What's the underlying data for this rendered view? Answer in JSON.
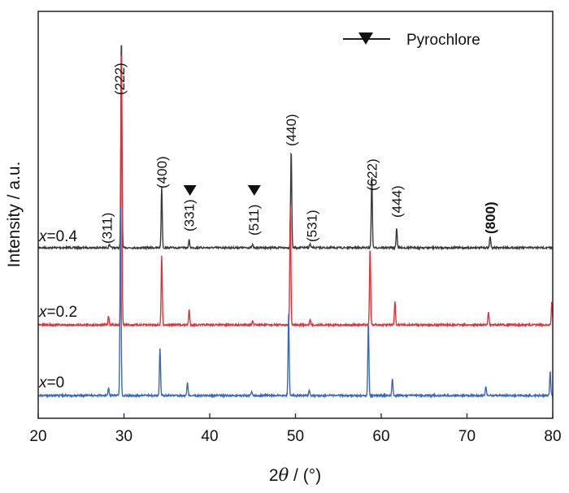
{
  "chart_data": {
    "type": "line",
    "xlabel_parts": [
      "2",
      "θ",
      " / (°)"
    ],
    "ylabel": "Intensity / a.u.",
    "xlim": [
      20,
      80
    ],
    "x_ticks": [
      20,
      30,
      40,
      50,
      60,
      70,
      80
    ],
    "grid": false,
    "legend": {
      "entries": [
        {
          "marker": "triangle-down",
          "label": "Pyrochlore"
        }
      ],
      "placement": "top-right"
    },
    "series": [
      {
        "name_prefix": "x",
        "name_suffix": "=0.4",
        "color": "#3a3a3a",
        "offset": 2.0,
        "peaks": [
          {
            "x": 28.3,
            "h": 0.05
          },
          {
            "x": 29.7,
            "h": 2.75
          },
          {
            "x": 34.4,
            "h": 0.8
          },
          {
            "x": 37.6,
            "h": 0.1
          },
          {
            "x": 45.0,
            "h": 0.04
          },
          {
            "x": 49.5,
            "h": 1.28
          },
          {
            "x": 51.7,
            "h": 0.05
          },
          {
            "x": 58.9,
            "h": 0.95
          },
          {
            "x": 61.8,
            "h": 0.26
          },
          {
            "x": 72.7,
            "h": 0.15
          }
        ]
      },
      {
        "name_prefix": "x",
        "name_suffix": "=0.2",
        "color": "#e0323b",
        "offset": 1.0,
        "peaks": [
          {
            "x": 28.2,
            "h": 0.12
          },
          {
            "x": 29.7,
            "h": 3.65
          },
          {
            "x": 34.4,
            "h": 0.9
          },
          {
            "x": 37.6,
            "h": 0.2
          },
          {
            "x": 45.0,
            "h": 0.05
          },
          {
            "x": 49.4,
            "h": 1.55
          },
          {
            "x": 51.7,
            "h": 0.07
          },
          {
            "x": 58.7,
            "h": 1.0
          },
          {
            "x": 61.6,
            "h": 0.3
          },
          {
            "x": 72.5,
            "h": 0.17
          },
          {
            "x": 79.9,
            "h": 0.3
          }
        ]
      },
      {
        "name_prefix": "x",
        "name_suffix": "=0",
        "color": "#3a69b8",
        "offset": 0.0,
        "peaks": [
          {
            "x": 28.2,
            "h": 0.1
          },
          {
            "x": 29.6,
            "h": 2.45
          },
          {
            "x": 34.2,
            "h": 0.62
          },
          {
            "x": 37.4,
            "h": 0.18
          },
          {
            "x": 44.9,
            "h": 0.05
          },
          {
            "x": 49.2,
            "h": 1.05
          },
          {
            "x": 51.6,
            "h": 0.07
          },
          {
            "x": 58.5,
            "h": 0.95
          },
          {
            "x": 61.3,
            "h": 0.22
          },
          {
            "x": 72.2,
            "h": 0.12
          },
          {
            "x": 79.7,
            "h": 0.32
          }
        ]
      }
    ],
    "peak_labels": [
      {
        "text": "(311)",
        "x": 28.0,
        "pyrochlore": false
      },
      {
        "text": "(222)",
        "x": 29.5,
        "pyrochlore": false
      },
      {
        "text": "(400)",
        "x": 34.4,
        "pyrochlore": false
      },
      {
        "text": "(331)",
        "x": 37.6,
        "pyrochlore": true
      },
      {
        "text": "(511)",
        "x": 45.1,
        "pyrochlore": true
      },
      {
        "text": "(440)",
        "x": 49.5,
        "pyrochlore": false
      },
      {
        "text": "(531)",
        "x": 51.9,
        "pyrochlore": false
      },
      {
        "text": "(622)",
        "x": 58.9,
        "pyrochlore": false
      },
      {
        "text": "(444)",
        "x": 61.8,
        "pyrochlore": false
      },
      {
        "text": "(800)",
        "x": 72.7,
        "pyrochlore": false
      }
    ]
  }
}
